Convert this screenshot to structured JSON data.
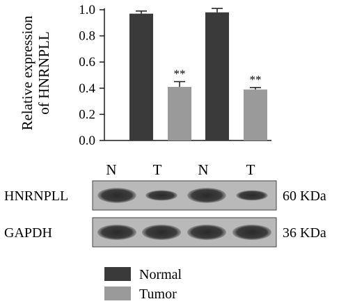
{
  "chart_data": {
    "type": "bar",
    "title": "",
    "ylabel_line1": "Relative expression",
    "ylabel_line2": "of HNRNPLL",
    "xlabel": "",
    "ylim": [
      0,
      1.0
    ],
    "yticks": [
      "0.0",
      "0.2",
      "0.4",
      "0.6",
      "0.8",
      "1.0"
    ],
    "ytick_values": [
      0,
      0.2,
      0.4,
      0.6,
      0.8,
      1.0
    ],
    "bars": [
      {
        "group": "Normal",
        "value": 0.97,
        "error": 0.02,
        "annotation": ""
      },
      {
        "group": "Tumor",
        "value": 0.41,
        "error": 0.04,
        "annotation": "**"
      },
      {
        "group": "Normal",
        "value": 0.98,
        "error": 0.03,
        "annotation": ""
      },
      {
        "group": "Tumor",
        "value": 0.39,
        "error": 0.015,
        "annotation": "**"
      }
    ],
    "lane_labels": [
      "N",
      "T",
      "N",
      "T"
    ],
    "blots": [
      {
        "protein": "HNRNPLL",
        "size": "60 KDa",
        "band_intensity": [
          0.97,
          0.41,
          0.98,
          0.39
        ]
      },
      {
        "protein": "GAPDH",
        "size": "36 KDa",
        "band_intensity": [
          1.0,
          1.0,
          1.0,
          1.0
        ]
      }
    ],
    "legend": [
      {
        "label": "Normal",
        "color": "#3a3a3a"
      },
      {
        "label": "Tumor",
        "color": "#9a9a9a"
      }
    ],
    "legend_position": "bottom-left",
    "grid": false
  }
}
